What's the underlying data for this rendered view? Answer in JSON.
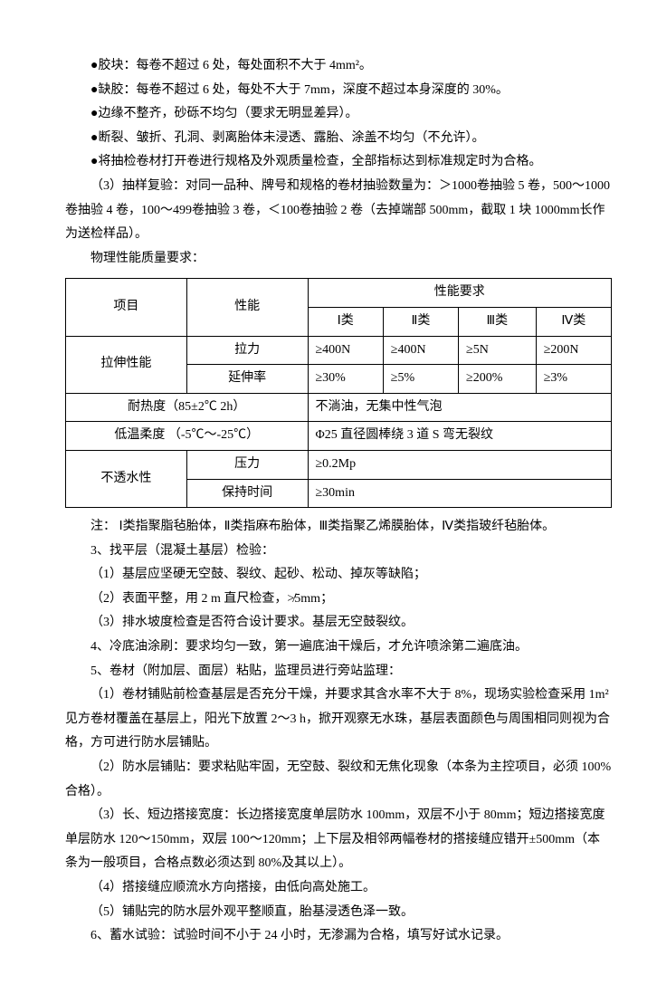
{
  "bullets": [
    "●胶块：每卷不超过 6 处，每处面积不大于 4mm²。",
    "●缺胶：每卷不超过 6 处，每处不大于 7mm，深度不超过本身深度的 30%。",
    "●边缘不整齐，砂砾不均匀（要求无明显差异）。",
    "●断裂、皱折、孔洞、剥离胎体未浸透、露胎、涂盖不均匀（不允许）。",
    "●将抽检卷材打开卷进行规格及外观质量检查，全部指标达到标准规定时为合格。"
  ],
  "para3": "（3）抽样复验：对同一品种、牌号和规格的卷材抽验数量为：＞1000卷抽验 5 卷，500～1000卷抽验 4 卷，100～499卷抽验 3 卷，＜100卷抽验 2 卷（去掉端部 500mm，截取 1 块 1000mm长作为送检样品）。",
  "para_phys": "物理性能质量要求：",
  "table": {
    "header": {
      "c1": "项目",
      "c2": "性能",
      "c3": "性能要求",
      "sub": [
        "Ⅰ类",
        "Ⅱ类",
        "Ⅲ类",
        "Ⅳ类"
      ]
    },
    "rows": [
      {
        "c1": "拉伸性能",
        "c2": "拉力",
        "v": [
          "≥400N",
          "≥400N",
          "≥5N",
          "≥200N"
        ]
      },
      {
        "c2": "延伸率",
        "v": [
          "≥30%",
          "≥5%",
          "≥200%",
          "≥3%"
        ]
      }
    ],
    "heat": {
      "label": "耐热度（85±2℃ 2h）",
      "value": "不淌油，无集中性气泡"
    },
    "cold": {
      "label": "低温柔度 （-5℃～-25℃）",
      "value": "Φ25 直径圆棒绕 3 道 S 弯无裂纹"
    },
    "water": {
      "label": "不透水性",
      "rows": [
        {
          "c2": "压力",
          "v": "≥0.2Mp"
        },
        {
          "c2": "保持时间",
          "v": "≥30min"
        }
      ]
    }
  },
  "note": "注： Ⅰ类指聚脂毡胎体，Ⅱ类指麻布胎体，Ⅲ类指聚乙烯膜胎体，Ⅳ类指玻纤毡胎体。",
  "sections": [
    "3、找平层（混凝土基层）检验：",
    "（1）基层应坚硬无空鼓、裂纹、起砂、松动、掉灰等缺陷；",
    "（2）表面平整，用 2 m 直尺检查，≯5mm；",
    "（3）排水坡度检查是否符合设计要求。基层无空鼓裂纹。",
    "4、冷底油涂刷：要求均匀一致，第一遍底油干燥后，才允许喷涂第二遍底油。",
    "5、卷材（附加层、面层）粘贴，监理员进行旁站监理："
  ],
  "para5_1": "（1）卷材铺贴前检查基层是否充分干燥，并要求其含水率不大于 8%，现场实验检查采用 1m²见方卷材覆盖在基层上，阳光下放置 2～3 h，掀开观察无水珠，基层表面颜色与周围相同则视为合格，方可进行防水层铺贴。",
  "para5_2": "（2）防水层铺贴：要求粘贴牢固，无空鼓、裂纹和无焦化现象（本条为主控项目，必须 100%合格）。",
  "para5_3": "（3）长、短边搭接宽度：长边搭接宽度单层防水 100mm，双层不小于 80mm；短边搭接宽度单层防水 120～150mm，双层 100～120mm；上下层及相邻两幅卷材的搭接缝应错开±500mm（本条为一般项目，合格点数必须达到 80%及其以上）。",
  "para5_4": "（4）搭接缝应顺流水方向搭接，由低向高处施工。",
  "para5_5": "（5）铺贴完的防水层外观平整顺直，胎基浸透色泽一致。",
  "para6": "6、蓄水试验：试验时间不小于 24 小时，无渗漏为合格，填写好试水记录。"
}
